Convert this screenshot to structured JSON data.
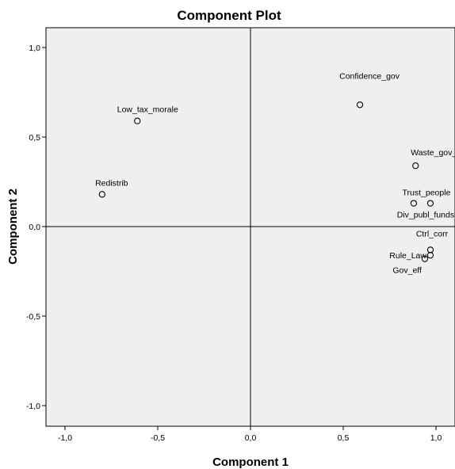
{
  "chart_data": {
    "type": "scatter",
    "title": "Component Plot",
    "xlabel": "Component 1",
    "ylabel": "Component 2",
    "xlim": [
      -1.1,
      1.1
    ],
    "ylim": [
      -1.1,
      1.1
    ],
    "x_ticks": [
      "-1,0",
      "-0,5",
      "0,0",
      "0,5",
      "1,0"
    ],
    "y_ticks": [
      "1,0",
      "0,5",
      "0,0",
      "-0,5",
      "-1,0"
    ],
    "grid": false,
    "reference_lines": {
      "x": 0,
      "y": 0
    },
    "colors": {
      "plot_background": "#efefef",
      "marker": "#000000",
      "axis": "#000000"
    },
    "points": [
      {
        "label": "Confidence_gov",
        "x": 0.59,
        "y": 0.68
      },
      {
        "label": "Low_tax_morale",
        "x": -0.61,
        "y": 0.59
      },
      {
        "label": "Waste_gov_spend",
        "x": 0.89,
        "y": 0.34
      },
      {
        "label": "Redistrib",
        "x": -0.8,
        "y": 0.18
      },
      {
        "label": "Trust_people",
        "x": 0.97,
        "y": 0.13
      },
      {
        "label": "Div_publ_funds",
        "x": 0.88,
        "y": 0.13
      },
      {
        "label": "Ctrl_corr",
        "x": 0.97,
        "y": -0.13
      },
      {
        "label": "Rule_Law",
        "x": 0.97,
        "y": -0.16
      },
      {
        "label": "Gov_eff",
        "x": 0.94,
        "y": -0.18
      }
    ]
  }
}
